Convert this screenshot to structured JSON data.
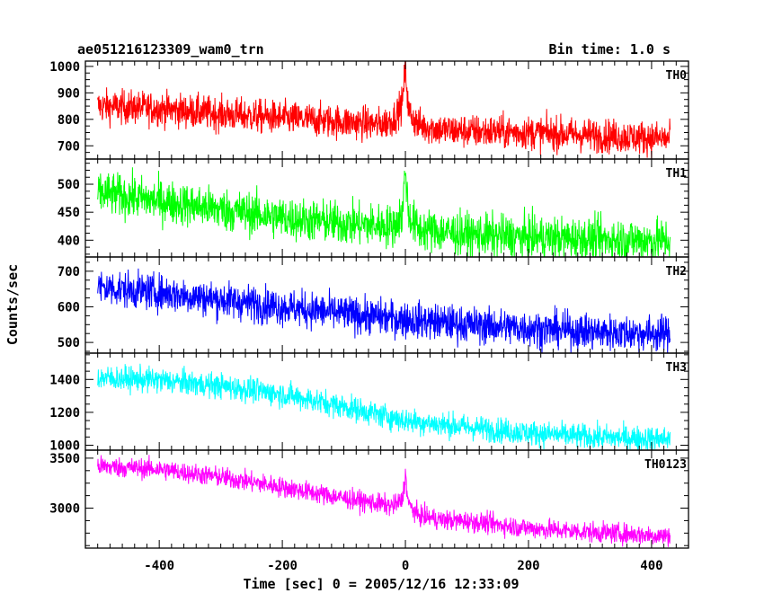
{
  "chart_data": {
    "type": "line",
    "title": "ae051216123309_wam0_trn",
    "subtitle": "Bin time: 1.0 s",
    "xlabel": "Time [sec] 0 = 2005/12/16 12:33:09",
    "ylabel": "Counts/sec",
    "xlim": [
      -520,
      460
    ],
    "xticks": [
      -400,
      -200,
      0,
      200,
      400
    ],
    "series": [
      {
        "name": "TH0",
        "color": "#ff0000",
        "ylim": [
          650,
          1020
        ],
        "yticks": [
          700,
          800,
          900,
          1000
        ],
        "x": [
          -500,
          -400,
          -300,
          -200,
          -100,
          -40,
          -20,
          -5,
          0,
          5,
          20,
          60,
          100,
          200,
          300,
          400,
          430
        ],
        "y": [
          850,
          840,
          820,
          805,
          790,
          780,
          800,
          860,
          1000,
          830,
          780,
          760,
          755,
          750,
          740,
          730,
          725
        ],
        "noise": 75
      },
      {
        "name": "TH1",
        "color": "#00ff00",
        "ylim": [
          370,
          545
        ],
        "yticks": [
          400,
          450,
          500
        ],
        "x": [
          -500,
          -400,
          -300,
          -200,
          -100,
          -20,
          -5,
          0,
          5,
          20,
          60,
          100,
          200,
          300,
          400,
          430
        ],
        "y": [
          485,
          470,
          455,
          440,
          430,
          425,
          445,
          530,
          445,
          420,
          415,
          410,
          405,
          402,
          400,
          400
        ],
        "noise": 45
      },
      {
        "name": "TH2",
        "color": "#0000ff",
        "ylim": [
          470,
          740
        ],
        "yticks": [
          500,
          600,
          700
        ],
        "x": [
          -500,
          -400,
          -300,
          -200,
          -100,
          0,
          100,
          200,
          300,
          400,
          430
        ],
        "y": [
          655,
          640,
          620,
          600,
          580,
          565,
          550,
          540,
          530,
          525,
          525
        ],
        "noise": 60
      },
      {
        "name": "TH3",
        "color": "#00ffff",
        "ylim": [
          970,
          1560
        ],
        "yticks": [
          1000,
          1200,
          1400
        ],
        "x": [
          -500,
          -400,
          -300,
          -200,
          -100,
          0,
          100,
          200,
          300,
          400,
          430
        ],
        "y": [
          1410,
          1395,
          1360,
          1310,
          1235,
          1150,
          1110,
          1075,
          1050,
          1040,
          1040
        ],
        "noise": 90
      },
      {
        "name": "TH0123",
        "color": "#ff00ff",
        "ylim": [
          2600,
          3580
        ],
        "yticks": [
          3000,
          3500
        ],
        "x": [
          -500,
          -400,
          -300,
          -200,
          -100,
          -20,
          -5,
          0,
          5,
          20,
          60,
          100,
          200,
          300,
          400,
          430
        ],
        "y": [
          3420,
          3390,
          3310,
          3210,
          3100,
          3020,
          3080,
          3330,
          3040,
          2930,
          2880,
          2870,
          2800,
          2760,
          2730,
          2720
        ],
        "noise": 120
      }
    ]
  }
}
